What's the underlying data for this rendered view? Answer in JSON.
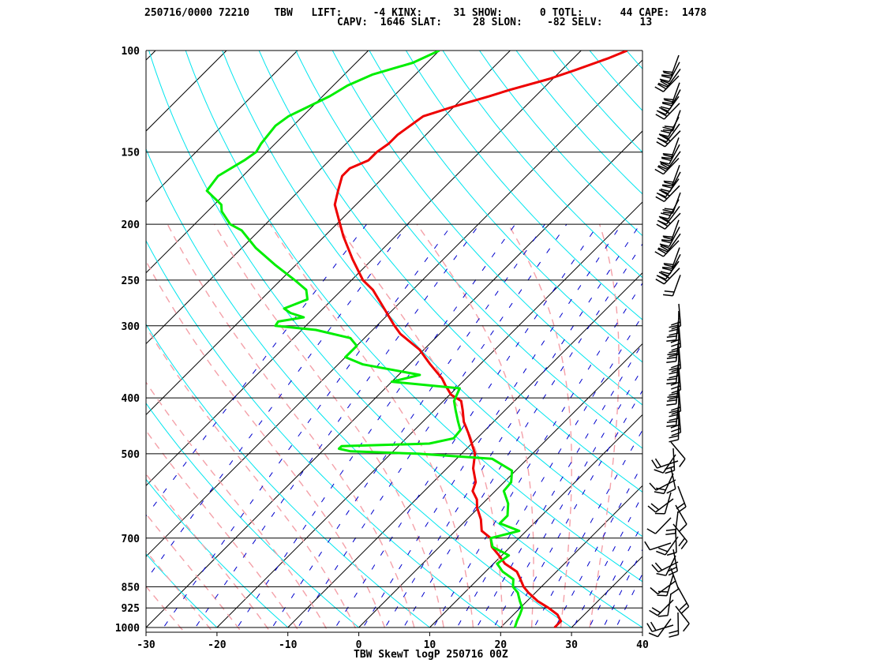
{
  "header": {
    "line1": "250716/0000 72210    TBW   LIFT:     -4 KINX:     31 SHOW:      0 TOTL:      44 CAPE:  1478",
    "line2": "CAPV:  1646 SLAT:     28 SLON:    -82 SELV:      13",
    "date_time": "250716/0000",
    "station_id": "72210",
    "station": "TBW",
    "indices": {
      "LIFT": -4,
      "KINX": 31,
      "SHOW": 0,
      "TOTL": 44,
      "CAPE": 1478,
      "CAPV": 1646,
      "SLAT": 28,
      "SLON": -82,
      "SELV": 13
    }
  },
  "footer": {
    "title": "TBW SkewT logP 250716 00Z"
  },
  "colors": {
    "temperature": "#ee0000",
    "dewpoint": "#00ee00",
    "isotherm": "#000000",
    "dry_adiabat": "#00e5ee",
    "moist_adiabat": "#f4a0a8",
    "mixing_ratio": "#0000cc",
    "wind_barb": "#000000"
  },
  "chart_data": {
    "type": "line",
    "subtype": "skew-T log-P",
    "title": "TBW SkewT logP 250716 00Z",
    "xlabel": "",
    "ylabel": "",
    "x_ticks": [
      -30,
      -20,
      -10,
      0,
      10,
      20,
      30,
      40
    ],
    "x_tick_labels": [
      "-30",
      "-20",
      "-10",
      "0",
      "10",
      "20",
      "30",
      "40"
    ],
    "xlim": [
      -30,
      40
    ],
    "ylim": [
      1000,
      100
    ],
    "y_scale": "log",
    "p_ticks": [
      100,
      150,
      200,
      250,
      300,
      400,
      500,
      700,
      850,
      925,
      1000
    ],
    "p_tick_labels": [
      "100",
      "150",
      "200",
      "250",
      "300",
      "400",
      "500",
      "700",
      "850",
      "925",
      "1000"
    ],
    "series": [
      {
        "name": "temperature",
        "p": [
          1000,
          975,
          950,
          925,
          900,
          870,
          850,
          825,
          800,
          775,
          750,
          725,
          700,
          680,
          650,
          620,
          600,
          580,
          560,
          530,
          500,
          480,
          460,
          440,
          420,
          405,
          395,
          380,
          370,
          350,
          330,
          310,
          300,
          280,
          260,
          250,
          230,
          210,
          200,
          185,
          175,
          165,
          160,
          155,
          150,
          145,
          140,
          130,
          125,
          120,
          117,
          112,
          108,
          103,
          100
        ],
        "t": [
          27.6,
          27.6,
          26.2,
          24.0,
          21.5,
          19.0,
          17.5,
          16.0,
          14.4,
          11.6,
          9.6,
          7.4,
          6.0,
          3.7,
          2.0,
          -0.2,
          -1.4,
          -3.2,
          -4.0,
          -6.3,
          -8.1,
          -10.0,
          -12.0,
          -14.2,
          -16.0,
          -17.5,
          -19.8,
          -22.0,
          -23.4,
          -27.0,
          -30.6,
          -35.5,
          -37.5,
          -41.4,
          -45.6,
          -48.4,
          -52.8,
          -57.3,
          -59.5,
          -63.0,
          -64.5,
          -66.0,
          -66.0,
          -64.5,
          -64.5,
          -64.0,
          -64.0,
          -63.0,
          -60.0,
          -56.5,
          -54.5,
          -50.5,
          -48.0,
          -45.0,
          -43.5
        ]
      },
      {
        "name": "dewpoint",
        "p": [
          1000,
          975,
          950,
          925,
          900,
          870,
          850,
          825,
          800,
          775,
          750,
          725,
          700,
          680,
          660,
          640,
          610,
          580,
          560,
          535,
          510,
          500,
          495,
          490,
          485,
          480,
          470,
          455,
          440,
          420,
          405,
          385,
          375,
          365,
          350,
          340,
          325,
          315,
          305,
          300,
          295,
          290,
          285,
          280,
          270,
          260,
          250,
          235,
          220,
          205,
          200,
          190,
          185,
          175,
          165,
          155,
          150,
          145,
          135,
          130,
          120,
          115,
          110,
          105,
          100
        ],
        "t": [
          22.0,
          21.4,
          20.9,
          20.3,
          19.0,
          17.5,
          16.0,
          15.0,
          12.4,
          10.5,
          11.0,
          7.5,
          6.0,
          9.0,
          5.2,
          5.2,
          3.6,
          1.2,
          1.0,
          -0.5,
          -5.0,
          -16.0,
          -26.0,
          -28.0,
          -28.0,
          -16.0,
          -13.3,
          -13.5,
          -15.0,
          -17.0,
          -18.5,
          -19.5,
          -30.0,
          -27.0,
          -36.5,
          -40.0,
          -40.0,
          -42.0,
          -48.0,
          -54.3,
          -54.5,
          -51.5,
          -54.0,
          -55.5,
          -53.5,
          -55.0,
          -58.0,
          -63.0,
          -68.0,
          -72.5,
          -75.0,
          -78.0,
          -79.0,
          -83.0,
          -83.5,
          -82.0,
          -81.5,
          -82.0,
          -82.5,
          -82.0,
          -79.0,
          -78.0,
          -76.0,
          -72.0,
          -70.0
        ]
      }
    ],
    "wind_barbs": {
      "description": "wind barbs along right edge, plotted by pressure level",
      "count_upper": 33,
      "count_mid": 17,
      "count_lower": 30
    },
    "background": {
      "isotherms_step_c": 10,
      "dry_adiabats": true,
      "moist_adiabats": true,
      "mixing_ratio_lines": true,
      "isobars": [
        100,
        150,
        200,
        250,
        300,
        400,
        500,
        700,
        850,
        925,
        1000
      ]
    },
    "grid": true,
    "legend": "none"
  }
}
